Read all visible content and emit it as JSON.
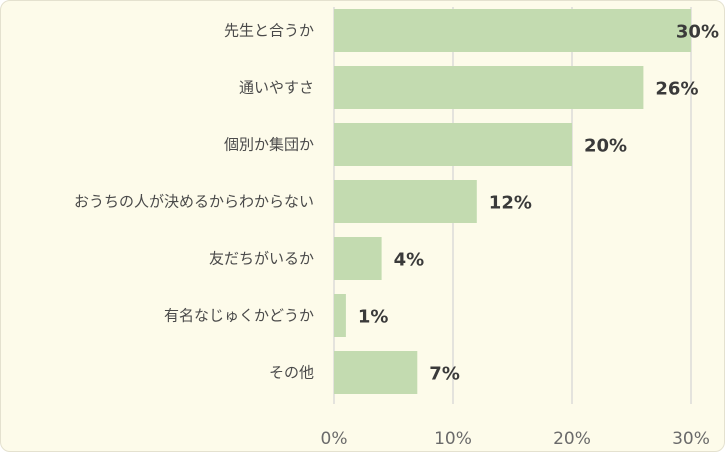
{
  "chart_data": {
    "type": "bar",
    "orientation": "horizontal",
    "categories": [
      "先生と合うか",
      "通いやすさ",
      "個別か集団か",
      "おうちの人が決めるからわからない",
      "友だちがいるか",
      "有名なじゅくかどうか",
      "その他"
    ],
    "values": [
      30,
      26,
      20,
      12,
      4,
      1,
      7
    ],
    "value_labels": [
      "30%",
      "26%",
      "20%",
      "12%",
      "4%",
      "1%",
      "7%"
    ],
    "xlim": [
      0,
      30
    ],
    "xticks": [
      0,
      10,
      20,
      30
    ],
    "xtick_labels": [
      "0%",
      "10%",
      "20%",
      "30%"
    ],
    "title": "",
    "xlabel": "",
    "ylabel": "",
    "grid": true,
    "legend": "none",
    "colors": {
      "bar": "#c3dbb0",
      "grid": "#d6d6d6",
      "background": "#fdfbea"
    }
  }
}
